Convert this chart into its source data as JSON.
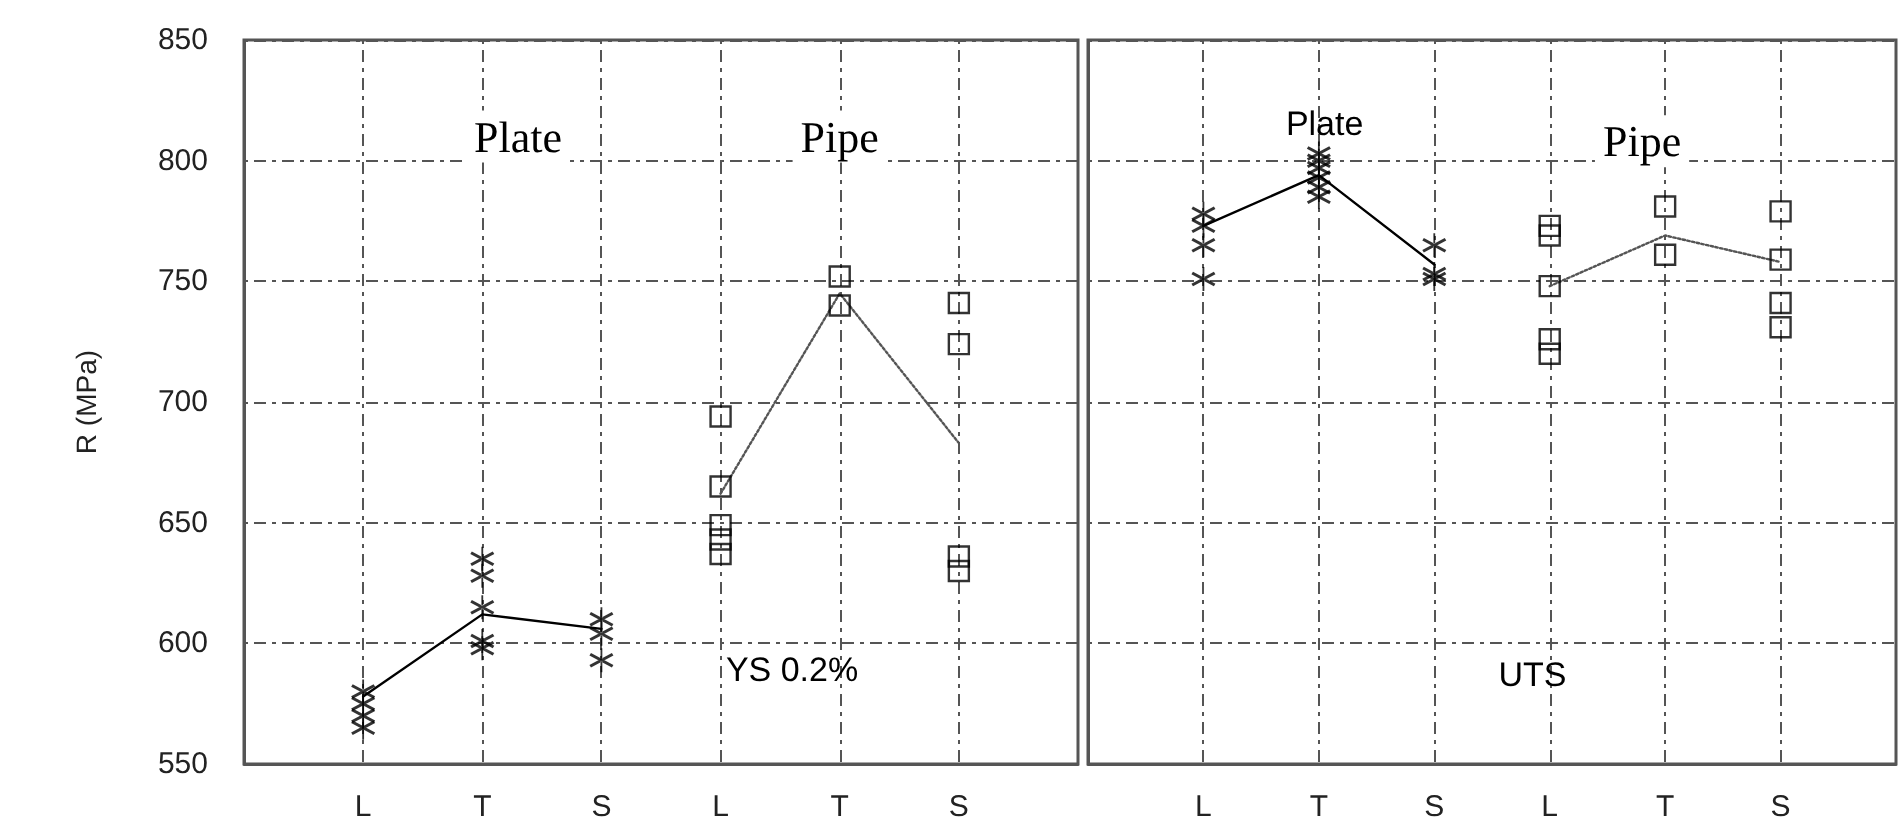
{
  "chart_data": [
    {
      "type": "scatter",
      "ylabel": "R (MPa)",
      "categories": [
        null,
        "L",
        "T",
        "S",
        "L",
        "T",
        "S",
        null
      ],
      "ylim": [
        550,
        850
      ],
      "yticks": [
        550,
        600,
        650,
        700,
        750,
        800,
        850
      ],
      "grid": true,
      "annotations": [
        "Plate",
        "Pipe",
        "YS 0.2%"
      ],
      "series": [
        {
          "marker": "cross",
          "color": "#000000",
          "values": [
            null,
            580,
            635,
            610,
            null,
            null,
            null,
            null
          ]
        },
        {
          "marker": "cross",
          "color": "#000000",
          "values": [
            null,
            575,
            628,
            604,
            null,
            null,
            null,
            null
          ]
        },
        {
          "marker": "cross",
          "color": "#000000",
          "values": [
            null,
            570,
            615,
            593,
            null,
            null,
            null,
            null
          ]
        },
        {
          "marker": "cross",
          "color": "#000000",
          "values": [
            null,
            565,
            601,
            null,
            null,
            null,
            null,
            null
          ]
        },
        {
          "marker": "cross",
          "color": "#000000",
          "values": [
            null,
            null,
            598,
            null,
            null,
            null,
            null,
            null
          ]
        },
        {
          "marker": "square",
          "color": "#000000",
          "values": [
            null,
            null,
            null,
            null,
            694,
            752,
            741,
            null
          ]
        },
        {
          "marker": "square",
          "color": "#000000",
          "values": [
            null,
            null,
            null,
            null,
            665,
            740,
            724,
            null
          ]
        },
        {
          "marker": "square",
          "color": "#000000",
          "values": [
            null,
            null,
            null,
            null,
            649,
            null,
            636,
            null
          ]
        },
        {
          "marker": "square",
          "color": "#000000",
          "values": [
            null,
            null,
            null,
            null,
            643,
            null,
            630,
            null
          ]
        },
        {
          "marker": "square",
          "color": "#000000",
          "values": [
            null,
            null,
            null,
            null,
            637,
            null,
            null,
            null
          ]
        },
        {
          "type": "line",
          "marker": "none",
          "line_style": "solid",
          "color": "#000000",
          "values": [
            null,
            578,
            612,
            606,
            null,
            null,
            null,
            null
          ]
        },
        {
          "type": "line",
          "marker": "none",
          "line_style": "dotted",
          "color": "#555555",
          "values": [
            null,
            null,
            null,
            null,
            662,
            745,
            683,
            null
          ]
        }
      ]
    },
    {
      "type": "scatter",
      "categories": [
        null,
        "L",
        "T",
        "S",
        "L",
        "T",
        "S",
        null
      ],
      "ylim": [
        550,
        850
      ],
      "yticks": [
        550,
        600,
        650,
        700,
        750,
        800,
        850
      ],
      "grid": true,
      "tick_labels": "x",
      "annotations": [
        "Plate",
        "Pipe",
        "UTS"
      ],
      "series": [
        {
          "marker": "cross",
          "color": "#000000",
          "values": [
            null,
            778,
            803,
            765,
            null,
            null,
            null,
            null
          ]
        },
        {
          "marker": "cross",
          "color": "#000000",
          "values": [
            null,
            773,
            800,
            753,
            null,
            null,
            null,
            null
          ]
        },
        {
          "marker": "cross",
          "color": "#000000",
          "values": [
            null,
            765,
            797,
            751,
            null,
            null,
            null,
            null
          ]
        },
        {
          "marker": "cross",
          "color": "#000000",
          "values": [
            null,
            751,
            793,
            null,
            null,
            null,
            null,
            null
          ]
        },
        {
          "marker": "cross",
          "color": "#000000",
          "values": [
            null,
            null,
            789,
            null,
            null,
            null,
            null,
            null
          ]
        },
        {
          "marker": "cross",
          "color": "#000000",
          "values": [
            null,
            null,
            785,
            null,
            null,
            null,
            null,
            null
          ]
        },
        {
          "marker": "square",
          "color": "#000000",
          "values": [
            null,
            null,
            null,
            null,
            773,
            781,
            779,
            null
          ]
        },
        {
          "marker": "square",
          "color": "#000000",
          "values": [
            null,
            null,
            null,
            null,
            769,
            761,
            759,
            null
          ]
        },
        {
          "marker": "square",
          "color": "#000000",
          "values": [
            null,
            null,
            null,
            null,
            748,
            null,
            741,
            null
          ]
        },
        {
          "marker": "square",
          "color": "#000000",
          "values": [
            null,
            null,
            null,
            null,
            726,
            null,
            731,
            null
          ]
        },
        {
          "marker": "square",
          "color": "#000000",
          "values": [
            null,
            null,
            null,
            null,
            720,
            null,
            null,
            null
          ]
        },
        {
          "type": "line",
          "marker": "none",
          "line_style": "solid",
          "color": "#000000",
          "values": [
            null,
            773,
            794,
            757,
            null,
            null,
            null,
            null
          ]
        },
        {
          "type": "line",
          "marker": "none",
          "line_style": "dotted",
          "color": "#555555",
          "values": [
            null,
            null,
            null,
            null,
            748,
            769,
            758,
            null
          ]
        }
      ]
    }
  ]
}
